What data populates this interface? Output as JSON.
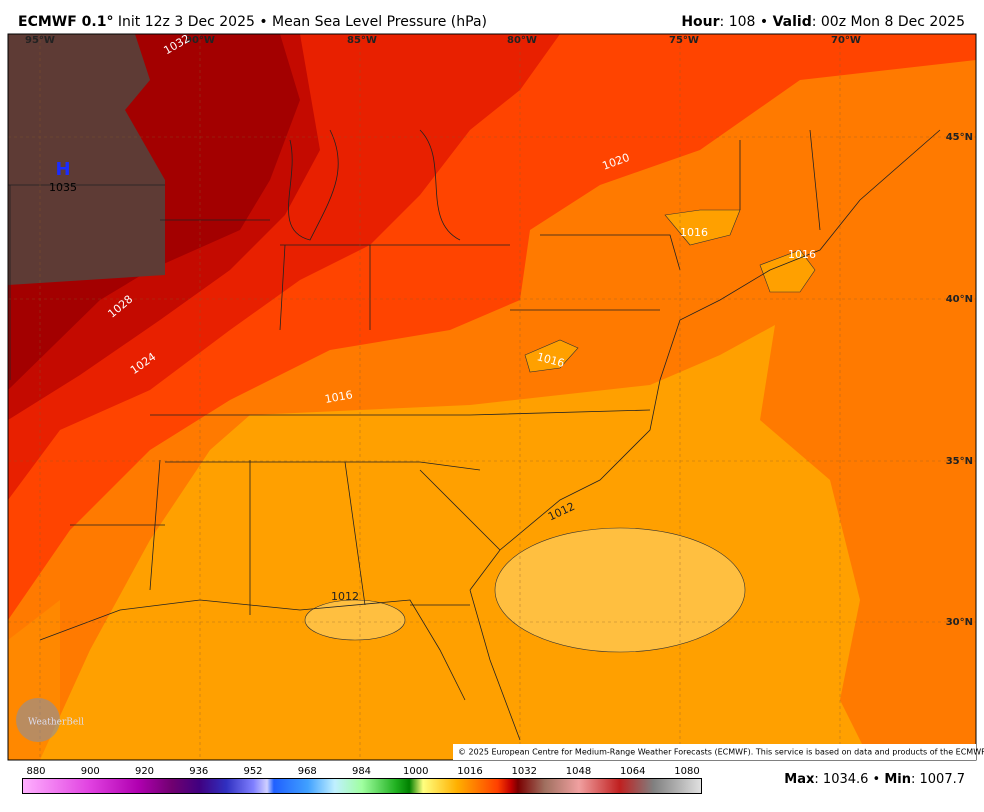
{
  "header": {
    "model": "ECMWF 0.1°",
    "subtitle": "Init 12z 3 Dec 2025 • Mean Sea Level Pressure (hPa)",
    "hour_label": "Hour",
    "hour_text": ": 108 • ",
    "valid_label": "Valid",
    "valid_text": ": 00z Mon 8 Dec 2025"
  },
  "map": {
    "longitudes": [
      "95°W",
      "90°W",
      "85°W",
      "80°W",
      "75°W",
      "70°W"
    ],
    "latitudes": [
      "45°N",
      "40°N",
      "35°N",
      "30°N"
    ],
    "high": {
      "symbol": "H",
      "value": "1035"
    },
    "contour_labels": [
      "1032",
      "1028",
      "1024",
      "1020",
      "1016",
      "1016",
      "1016",
      "1016",
      "1012",
      "1012"
    ],
    "credit": "WeatherBell",
    "copyright": "© 2025 European Centre for Medium-Range Weather Forecasts (ECMWF). This service is based on data and products of the ECMWF."
  },
  "colorbar": {
    "labels": [
      "880",
      "900",
      "920",
      "936",
      "952",
      "968",
      "984",
      "1000",
      "1016",
      "1032",
      "1048",
      "1064",
      "1080"
    ]
  },
  "footer": {
    "max_label": "Max",
    "max_text": ": 1034.6 • ",
    "min_label": "Min",
    "min_text": ": 1007.7"
  }
}
